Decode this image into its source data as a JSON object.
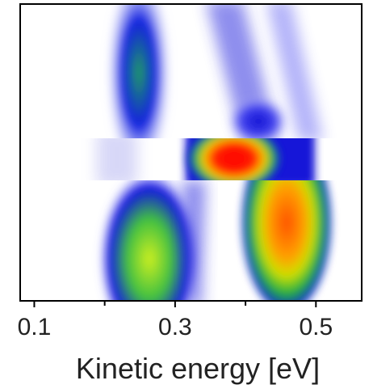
{
  "chart_data": {
    "type": "heatmap",
    "xlabel": "Kinetic energy [eV]",
    "xlim": [
      0.08,
      0.565
    ],
    "xticks": [
      0.1,
      0.3,
      0.5
    ],
    "xminor_ticks": [
      0.2,
      0.4
    ]
  }
}
